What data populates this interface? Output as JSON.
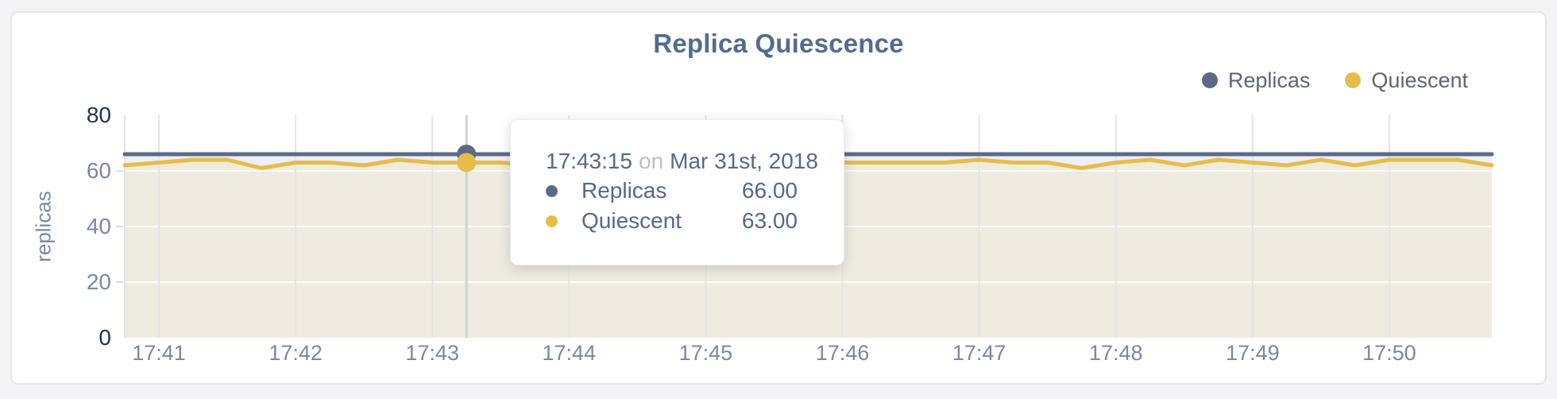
{
  "chart_data": {
    "type": "line",
    "title": "Replica Quiescence",
    "xlabel": "",
    "ylabel": "replicas",
    "ylim": [
      0,
      80
    ],
    "yticks": [
      0,
      20,
      40,
      60,
      80
    ],
    "xticks": [
      "17:41",
      "17:42",
      "17:43",
      "17:44",
      "17:45",
      "17:46",
      "17:47",
      "17:48",
      "17:49",
      "17:50"
    ],
    "x_range": [
      "17:40:45",
      "17:50:45"
    ],
    "grid": true,
    "legend_position": "top-right",
    "x_times": [
      "17:40:45",
      "17:41:00",
      "17:41:15",
      "17:41:30",
      "17:41:45",
      "17:42:00",
      "17:42:15",
      "17:42:30",
      "17:42:45",
      "17:43:00",
      "17:43:15",
      "17:43:30",
      "17:43:45",
      "17:44:00",
      "17:44:15",
      "17:44:30",
      "17:44:45",
      "17:45:00",
      "17:45:15",
      "17:45:30",
      "17:45:45",
      "17:46:00",
      "17:46:15",
      "17:46:30",
      "17:46:45",
      "17:47:00",
      "17:47:15",
      "17:47:30",
      "17:47:45",
      "17:48:00",
      "17:48:15",
      "17:48:30",
      "17:48:45",
      "17:49:00",
      "17:49:15",
      "17:49:30",
      "17:49:45",
      "17:50:00",
      "17:50:15",
      "17:50:30",
      "17:50:45"
    ],
    "series": [
      {
        "name": "Replicas",
        "color": "#5d6a85",
        "fill": "#edf0f5",
        "values": [
          66,
          66,
          66,
          66,
          66,
          66,
          66,
          66,
          66,
          66,
          66,
          66,
          66,
          66,
          66,
          66,
          66,
          66,
          66,
          66,
          66,
          66,
          66,
          66,
          66,
          66,
          66,
          66,
          66,
          66,
          66,
          66,
          66,
          66,
          66,
          66,
          66,
          66,
          66,
          66,
          66
        ]
      },
      {
        "name": "Quiescent",
        "color": "#e6bc4b",
        "fill": "#efebe0",
        "values": [
          62,
          63,
          64,
          64,
          61,
          63,
          63,
          62,
          64,
          63,
          63,
          63,
          62,
          63,
          63,
          64,
          63,
          63,
          62,
          63,
          64,
          63,
          63,
          63,
          63,
          64,
          63,
          63,
          61,
          63,
          64,
          62,
          64,
          63,
          62,
          64,
          62,
          64,
          64,
          64,
          62
        ]
      }
    ]
  },
  "tooltip": {
    "time": "17:43:15",
    "preposition": "on",
    "date": "Mar 31st, 2018",
    "highlight_time": "17:43:15",
    "rows": [
      {
        "label": "Replicas",
        "value": "66.00",
        "color": "#5d6a85"
      },
      {
        "label": "Quiescent",
        "value": "63.00",
        "color": "#e6bc4b"
      }
    ]
  },
  "colors": {
    "title": "#546b8f",
    "axis_tick": "#7d87a0",
    "axis_tick_extreme": "#26334f",
    "grid_vertical": "#e4e4e4",
    "crosshair": "#cdd1d7",
    "card_background": "#ffffff",
    "page_background": "#f4f4f6"
  }
}
